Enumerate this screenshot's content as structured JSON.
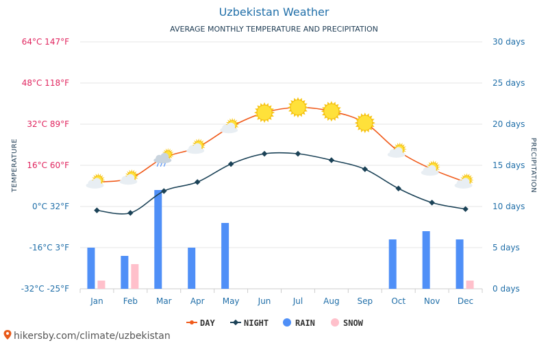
{
  "chart_data": {
    "type": "line+bar",
    "title": "Uzbekistan Weather",
    "subtitle": "AVERAGE MONTHLY TEMPERATURE AND PRECIPITATION",
    "ylabel_left": "TEMPERATURE",
    "ylabel_right": "PRECIPITATION",
    "categories": [
      "Jan",
      "Feb",
      "Mar",
      "Apr",
      "May",
      "Jun",
      "Jul",
      "Aug",
      "Sep",
      "Oct",
      "Nov",
      "Dec"
    ],
    "left_axis": {
      "range_c": [
        -32,
        64
      ],
      "ticks": [
        {
          "c": 64,
          "label": "64°C 147°F",
          "color": "#e0245e"
        },
        {
          "c": 48,
          "label": "48°C 118°F",
          "color": "#e0245e"
        },
        {
          "c": 32,
          "label": "32°C 89°F",
          "color": "#e0245e"
        },
        {
          "c": 16,
          "label": "16°C 60°F",
          "color": "#e0245e"
        },
        {
          "c": 0,
          "label": "0°C 32°F",
          "color": "#1f6ea8"
        },
        {
          "c": -16,
          "label": "-16°C 3°F",
          "color": "#1f6ea8"
        },
        {
          "c": -32,
          "label": "-32°C -25°F",
          "color": "#1f6ea8"
        }
      ]
    },
    "right_axis": {
      "range_days": [
        0,
        30
      ],
      "ticks": [
        {
          "v": 30,
          "label": "30 days"
        },
        {
          "v": 25,
          "label": "25 days"
        },
        {
          "v": 20,
          "label": "20 days"
        },
        {
          "v": 15,
          "label": "15 days"
        },
        {
          "v": 10,
          "label": "10 days"
        },
        {
          "v": 5,
          "label": "5 days"
        },
        {
          "v": 0,
          "label": "0 days"
        }
      ]
    },
    "series": [
      {
        "name": "DAY",
        "kind": "line",
        "axis": "left",
        "unit": "°C",
        "color": "#f05a1a",
        "values": [
          9.5,
          11,
          19,
          23,
          31,
          36.5,
          38.5,
          37,
          32.5,
          21.5,
          14.5,
          9.5
        ]
      },
      {
        "name": "NIGHT",
        "kind": "line",
        "axis": "left",
        "unit": "°C",
        "color": "#1b4257",
        "values": [
          -1.5,
          -2.5,
          6,
          9.5,
          16.5,
          20.5,
          20.5,
          18,
          14.5,
          7,
          1.5,
          -1
        ]
      },
      {
        "name": "RAIN",
        "kind": "bar",
        "axis": "right",
        "unit": "days",
        "color": "#4f8ff7",
        "values": [
          5,
          4,
          12,
          5,
          8,
          0,
          0,
          0,
          0,
          6,
          7,
          6
        ]
      },
      {
        "name": "SNOW",
        "kind": "bar",
        "axis": "right",
        "unit": "days",
        "color": "#ffc0cb",
        "values": [
          1,
          3,
          0,
          0,
          0,
          0,
          0,
          0,
          0,
          0,
          0,
          1
        ]
      }
    ],
    "weather_icons": [
      "partly-cloudy",
      "partly-cloudy",
      "rain-cloud",
      "partly-cloudy",
      "partly-cloudy",
      "sun",
      "sun",
      "sun",
      "sun",
      "partly-cloudy",
      "partly-cloudy",
      "partly-cloudy"
    ],
    "grid": true,
    "legend_position": "bottom-center"
  },
  "source_text": "hikersby.com/climate/uzbekistan"
}
